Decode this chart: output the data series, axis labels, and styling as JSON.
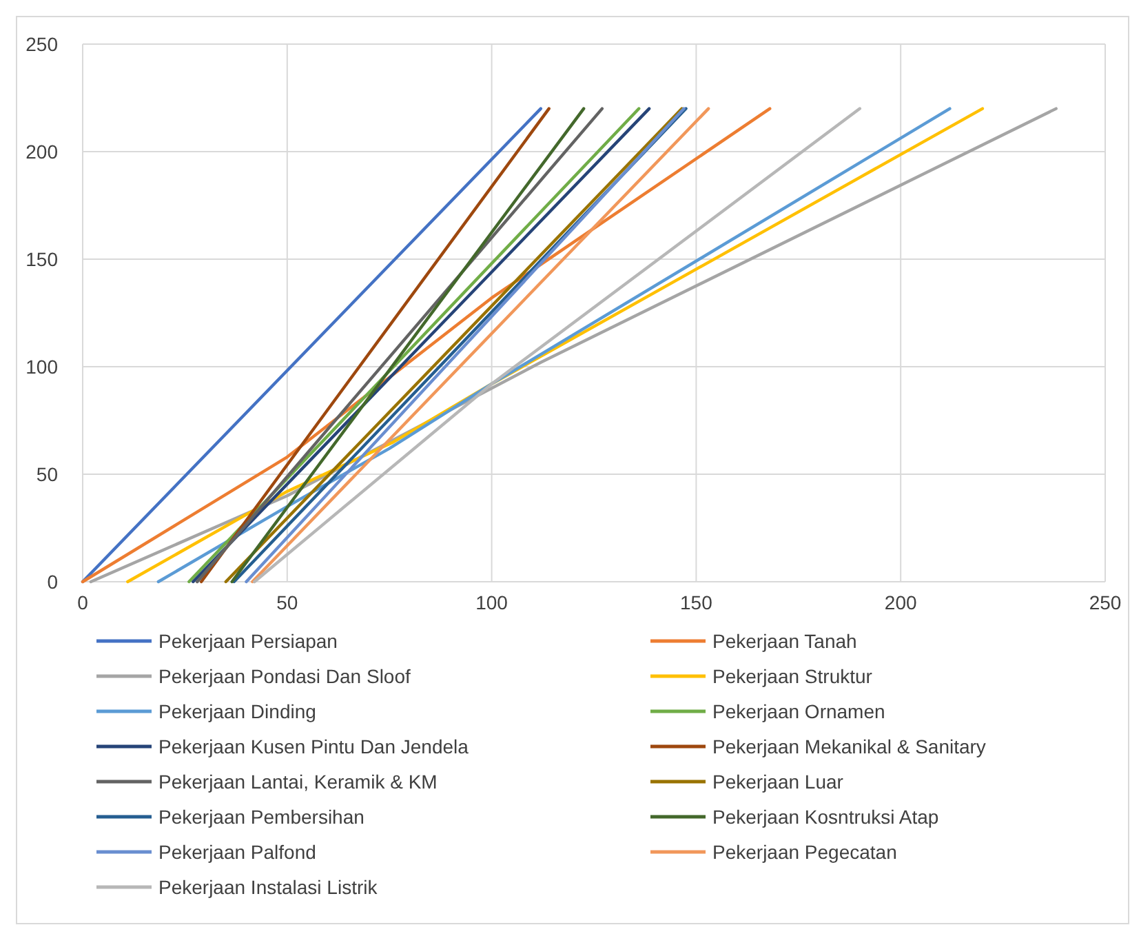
{
  "chart_data": {
    "type": "line",
    "xlim": [
      0,
      250
    ],
    "ylim": [
      0,
      250
    ],
    "xticks": [
      0,
      50,
      100,
      150,
      200,
      250
    ],
    "yticks": [
      0,
      50,
      100,
      150,
      200,
      250
    ],
    "grid": true,
    "legend": "bottom",
    "marker": "none",
    "line_style": "solid",
    "series": [
      {
        "name": "Pekerjaan Persiapan",
        "color": "#4472c4",
        "x": [
          0,
          112
        ],
        "values": [
          0,
          220
        ]
      },
      {
        "name": "Pekerjaan Tanah",
        "color": "#ed7d31",
        "x": [
          0,
          50,
          100,
          168
        ],
        "values": [
          0,
          58,
          132,
          220
        ]
      },
      {
        "name": "Pekerjaan Pondasi Dan Sloof",
        "color": "#a5a5a5",
        "x": [
          2,
          50,
          112,
          238
        ],
        "values": [
          0,
          40,
          102,
          220
        ]
      },
      {
        "name": "Pekerjaan Struktur",
        "color": "#ffc000",
        "x": [
          11,
          50,
          76,
          100,
          220
        ],
        "values": [
          0,
          42,
          65,
          92,
          220
        ]
      },
      {
        "name": "Pekerjaan Dinding",
        "color": "#5b9bd5",
        "x": [
          18.5,
          50,
          75,
          100,
          212
        ],
        "values": [
          0,
          35,
          62,
          92,
          220
        ]
      },
      {
        "name": "Pekerjaan Ornamen",
        "color": "#70ad47",
        "x": [
          26,
          136
        ],
        "values": [
          0,
          220
        ]
      },
      {
        "name": "Pekerjaan Kusen Pintu Dan Jendela",
        "color": "#264478",
        "x": [
          27,
          138.5
        ],
        "values": [
          0,
          220
        ]
      },
      {
        "name": "Pekerjaan Mekanikal & Sanitary",
        "color": "#9e480e",
        "x": [
          29,
          114
        ],
        "values": [
          0,
          220
        ]
      },
      {
        "name": "Pekerjaan Lantai, Keramik & KM",
        "color": "#636363",
        "x": [
          28,
          127
        ],
        "values": [
          0,
          220
        ]
      },
      {
        "name": "Pekerjaan Luar",
        "color": "#997300",
        "x": [
          35,
          146.5
        ],
        "values": [
          0,
          220
        ]
      },
      {
        "name": "Pekerjaan Pembersihan",
        "color": "#255e91",
        "x": [
          37,
          147.5
        ],
        "values": [
          0,
          220
        ]
      },
      {
        "name": "Pekerjaan Kosntruksi Atap",
        "color": "#43682b",
        "x": [
          36.5,
          122.5
        ],
        "values": [
          0,
          220
        ]
      },
      {
        "name": "Pekerjaan Palfond",
        "color": "#698ed0",
        "x": [
          40,
          147
        ],
        "values": [
          0,
          220
        ]
      },
      {
        "name": "Pekerjaan Pegecatan",
        "color": "#f1975a",
        "x": [
          41.5,
          153
        ],
        "values": [
          0,
          220
        ]
      },
      {
        "name": "Pekerjaan Instalasi Listrik",
        "color": "#b7b7b7",
        "x": [
          42,
          100,
          190
        ],
        "values": [
          0,
          92,
          220
        ]
      }
    ]
  }
}
